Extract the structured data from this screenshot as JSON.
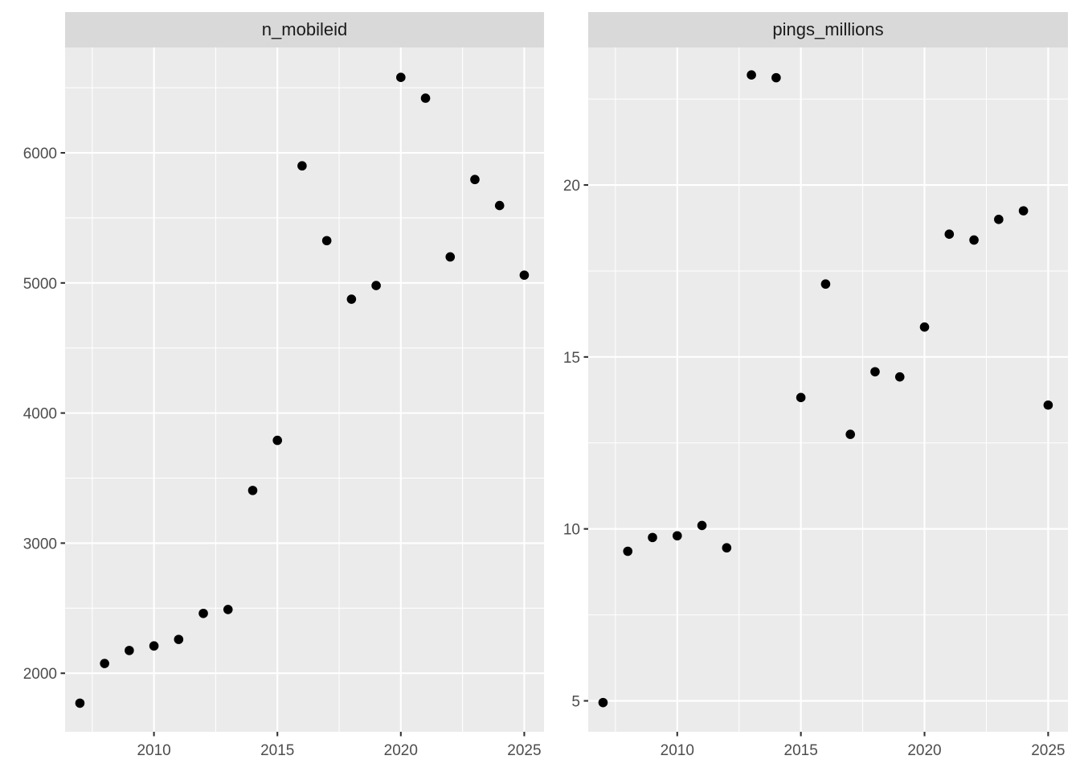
{
  "chart_data": [
    {
      "type": "scatter",
      "title": "n_mobileid",
      "x": [
        2007,
        2008,
        2009,
        2010,
        2011,
        2012,
        2013,
        2014,
        2015,
        2016,
        2017,
        2018,
        2019,
        2020,
        2021,
        2022,
        2023,
        2024,
        2025
      ],
      "y": [
        1770,
        2075,
        2175,
        2210,
        2260,
        2460,
        2490,
        3405,
        3790,
        5900,
        5325,
        4875,
        4980,
        6580,
        6420,
        5200,
        5795,
        5595,
        5060
      ],
      "xlim": [
        2006.4,
        2025.8
      ],
      "ylim": [
        1550,
        6810
      ],
      "xticks": [
        2010,
        2015,
        2020,
        2025
      ],
      "yticks": [
        2000,
        3000,
        4000,
        5000,
        6000
      ],
      "xtick_labels": [
        "2010",
        "2015",
        "2020",
        "2025"
      ],
      "ytick_labels": [
        "2000",
        "3000",
        "4000",
        "5000",
        "6000"
      ],
      "grid": true
    },
    {
      "type": "scatter",
      "title": "pings_millions",
      "x": [
        2007,
        2008,
        2009,
        2010,
        2011,
        2012,
        2013,
        2014,
        2015,
        2016,
        2017,
        2018,
        2019,
        2020,
        2021,
        2022,
        2023,
        2024,
        2025
      ],
      "y": [
        4.95,
        9.35,
        9.75,
        9.8,
        10.1,
        9.45,
        23.2,
        23.12,
        13.82,
        17.12,
        12.75,
        14.57,
        14.42,
        15.87,
        18.57,
        18.4,
        19.0,
        19.25,
        13.6
      ],
      "xlim": [
        2006.4,
        2025.8
      ],
      "ylim": [
        4.1,
        24.0
      ],
      "xticks": [
        2010,
        2015,
        2020,
        2025
      ],
      "yticks": [
        5,
        10,
        15,
        20
      ],
      "xtick_labels": [
        "2010",
        "2015",
        "2020",
        "2025"
      ],
      "ytick_labels": [
        "5",
        "10",
        "15",
        "20"
      ],
      "grid": true
    }
  ]
}
